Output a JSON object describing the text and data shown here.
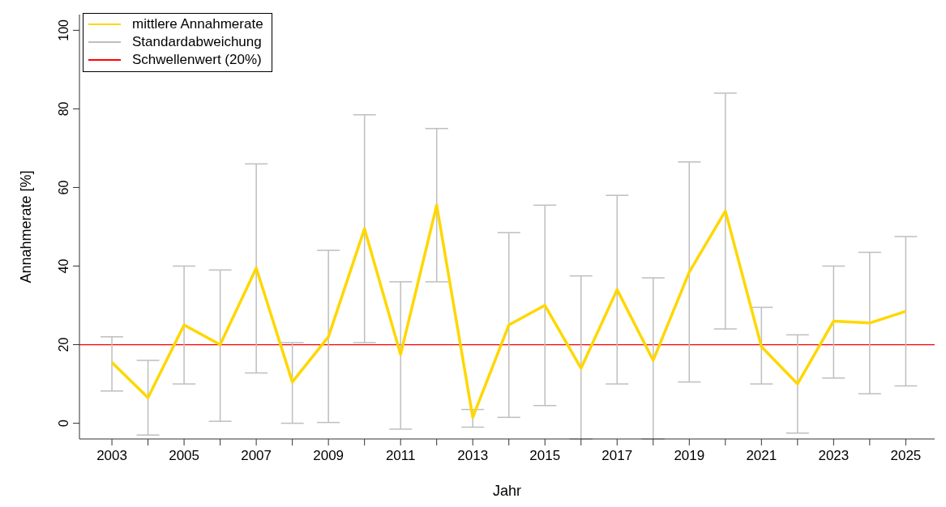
{
  "chart_data": {
    "type": "line",
    "xlabel": "Jahr",
    "ylabel": "Annahmerate [%]",
    "x": [
      2003,
      2004,
      2005,
      2006,
      2007,
      2008,
      2009,
      2010,
      2011,
      2012,
      2013,
      2014,
      2015,
      2016,
      2017,
      2018,
      2019,
      2020,
      2021,
      2022,
      2023,
      2024,
      2025
    ],
    "series": [
      {
        "name": "mittlere Annahmerate",
        "color": "#ffd700",
        "values": [
          15.5,
          6.5,
          25,
          20,
          39.5,
          10.5,
          22,
          49.5,
          17.5,
          55.5,
          1.5,
          25,
          30,
          14,
          34,
          16,
          38.5,
          54,
          19.5,
          10,
          26,
          25.5,
          28.5
        ],
        "errors": [
          [
            8.2,
            22
          ],
          [
            -3,
            16
          ],
          [
            10,
            40
          ],
          [
            0.5,
            39
          ],
          [
            12.8,
            66
          ],
          [
            0,
            20.5
          ],
          [
            0.2,
            44
          ],
          [
            20.5,
            78.5
          ],
          [
            -1.5,
            36
          ],
          [
            36,
            75
          ],
          [
            -1,
            3.5
          ],
          [
            1.5,
            48.5
          ],
          [
            4.5,
            55.5
          ],
          [
            -4,
            37.5
          ],
          [
            10,
            58
          ],
          [
            -4,
            37
          ],
          [
            10.5,
            66.5
          ],
          [
            24,
            84
          ],
          [
            10,
            29.5
          ],
          [
            -2.5,
            22.5
          ],
          [
            11.5,
            40
          ],
          [
            7.5,
            43.5
          ],
          [
            9.5,
            47.5
          ]
        ]
      }
    ],
    "ref_lines": [
      {
        "axis": "y",
        "value": 20,
        "label": "Schwellenwert (20%)",
        "color": "#ff0000"
      }
    ],
    "xlim": [
      2002.1,
      2025.8
    ],
    "xticks": [
      2003,
      {
        "value": 2004,
        "label": null
      },
      2005,
      {
        "value": 2006,
        "label": null
      },
      2007,
      {
        "value": 2008,
        "label": null
      },
      2009,
      {
        "value": 2010,
        "label": null
      },
      2011,
      {
        "value": 2012,
        "label": null
      },
      2013,
      {
        "value": 2014,
        "label": null
      },
      2015,
      {
        "value": 2016,
        "label": null
      },
      2017,
      {
        "value": 2018,
        "label": null
      },
      2019,
      {
        "value": 2020,
        "label": null
      },
      2021,
      {
        "value": 2022,
        "label": null
      },
      2023,
      {
        "value": 2024,
        "label": null
      },
      2025
    ],
    "ylim": [
      -4,
      104
    ],
    "yticks": [
      0,
      20,
      40,
      60,
      80,
      100
    ],
    "annotations": [
      "Standardabweichung"
    ],
    "legend": "top left",
    "marker": "none",
    "line_style": "solid"
  }
}
